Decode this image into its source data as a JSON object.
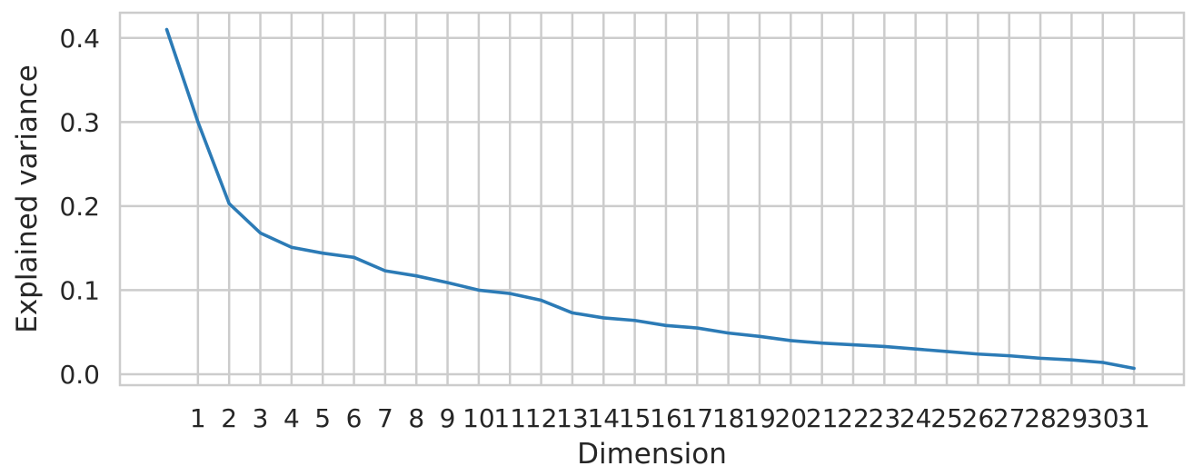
{
  "chart_data": {
    "type": "line",
    "title": "",
    "xlabel": "Dimension",
    "ylabel": "Explained variance",
    "x_tick_labels": [
      "1",
      "2",
      "3",
      "4",
      "5",
      "6",
      "7",
      "8",
      "9",
      "10",
      "11",
      "12",
      "13",
      "14",
      "15",
      "16",
      "17",
      "18",
      "19",
      "20",
      "21",
      "22",
      "23",
      "24",
      "25",
      "26",
      "27",
      "28",
      "29",
      "30",
      "31"
    ],
    "y_tick_labels": [
      "0.0",
      "0.1",
      "0.2",
      "0.3",
      "0.4"
    ],
    "y_ticks": [
      0.0,
      0.1,
      0.2,
      0.3,
      0.4
    ],
    "x_ticks": [
      1,
      2,
      3,
      4,
      5,
      6,
      7,
      8,
      9,
      10,
      11,
      12,
      13,
      14,
      15,
      16,
      17,
      18,
      19,
      20,
      21,
      22,
      23,
      24,
      25,
      26,
      27,
      28,
      29,
      30,
      31
    ],
    "xlim": [
      -1.5,
      32.6
    ],
    "ylim": [
      -0.013,
      0.43
    ],
    "grid": true,
    "series": [
      {
        "color": "#2c7bb6",
        "x": [
          0,
          1,
          2,
          3,
          4,
          5,
          6,
          7,
          8,
          9,
          10,
          11,
          12,
          13,
          14,
          15,
          16,
          17,
          18,
          19,
          20,
          21,
          22,
          23,
          24,
          25,
          26,
          27,
          28,
          29,
          30,
          31
        ],
        "y": [
          0.41,
          0.3,
          0.203,
          0.168,
          0.151,
          0.144,
          0.139,
          0.123,
          0.117,
          0.109,
          0.1,
          0.096,
          0.088,
          0.073,
          0.067,
          0.064,
          0.058,
          0.055,
          0.049,
          0.045,
          0.04,
          0.037,
          0.035,
          0.033,
          0.03,
          0.027,
          0.024,
          0.022,
          0.019,
          0.017,
          0.014,
          0.007
        ]
      }
    ],
    "colors": {
      "grid": "#cccccc",
      "frame": "#cccccc",
      "text": "#262626"
    }
  }
}
